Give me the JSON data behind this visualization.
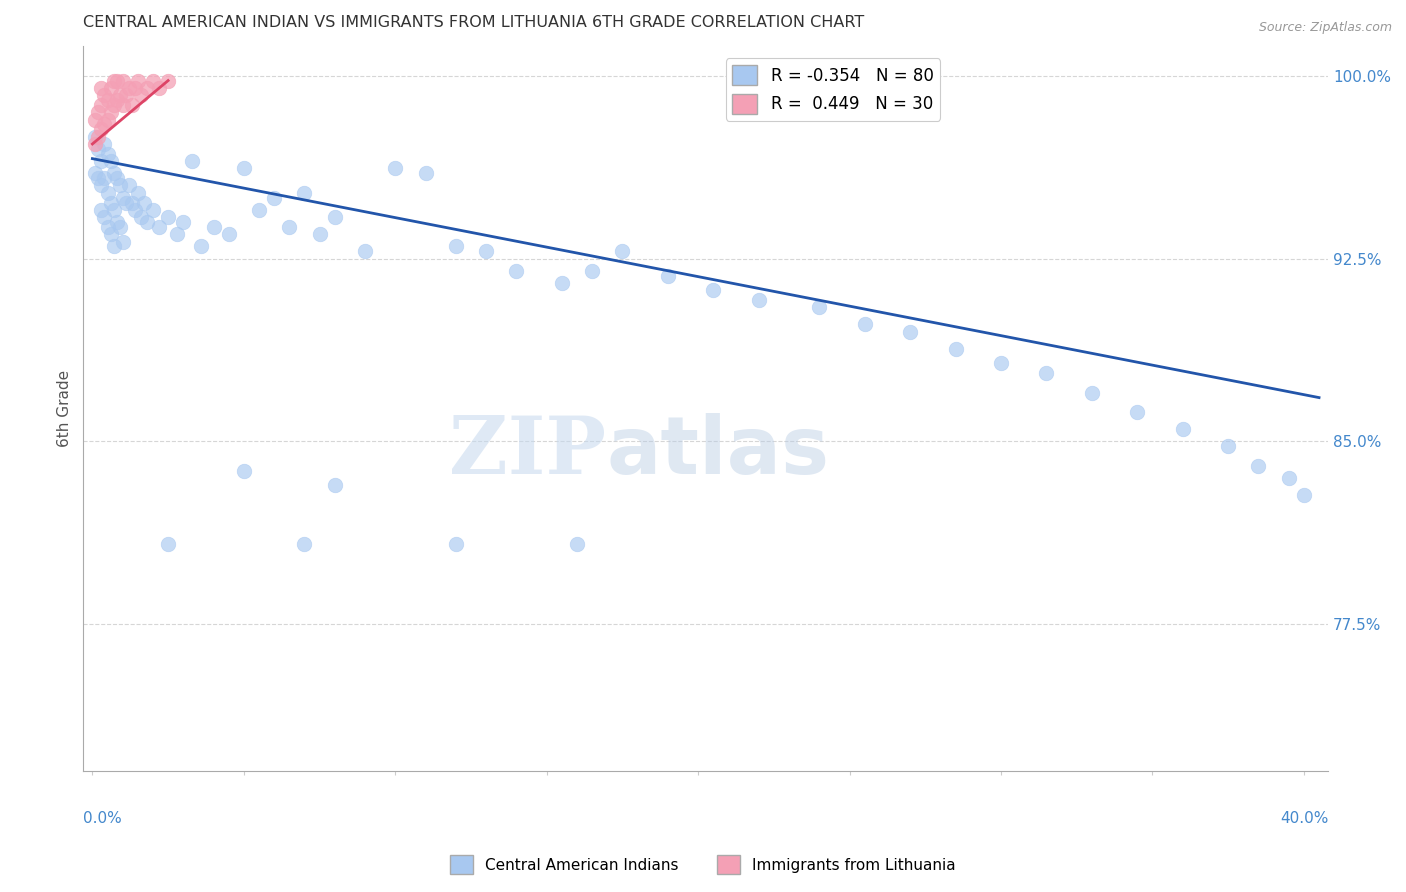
{
  "title": "CENTRAL AMERICAN INDIAN VS IMMIGRANTS FROM LITHUANIA 6TH GRADE CORRELATION CHART",
  "source": "Source: ZipAtlas.com",
  "ylabel": "6th Grade",
  "ylim": [
    0.715,
    1.012
  ],
  "xlim": [
    -0.003,
    0.408
  ],
  "blue_R": -0.354,
  "blue_N": 80,
  "pink_R": 0.449,
  "pink_N": 30,
  "legend_label_blue": "Central American Indians",
  "legend_label_pink": "Immigrants from Lithuania",
  "watermark_zip": "ZIP",
  "watermark_atlas": "atlas",
  "blue_color": "#A8C8F0",
  "pink_color": "#F4A0B5",
  "blue_line_color": "#2255AA",
  "pink_line_color": "#DD4466",
  "background_color": "#FFFFFF",
  "grid_color": "#CCCCCC",
  "title_color": "#333333",
  "axis_label_color": "#4488CC",
  "blue_x": [
    0.001,
    0.001,
    0.002,
    0.002,
    0.003,
    0.003,
    0.003,
    0.004,
    0.004,
    0.004,
    0.005,
    0.005,
    0.005,
    0.006,
    0.006,
    0.006,
    0.007,
    0.007,
    0.007,
    0.008,
    0.008,
    0.009,
    0.009,
    0.01,
    0.01,
    0.011,
    0.012,
    0.013,
    0.014,
    0.015,
    0.016,
    0.017,
    0.018,
    0.02,
    0.022,
    0.025,
    0.028,
    0.03,
    0.033,
    0.036,
    0.04,
    0.045,
    0.05,
    0.055,
    0.06,
    0.065,
    0.07,
    0.075,
    0.08,
    0.09,
    0.1,
    0.11,
    0.12,
    0.13,
    0.14,
    0.155,
    0.165,
    0.175,
    0.19,
    0.205,
    0.22,
    0.24,
    0.255,
    0.27,
    0.285,
    0.3,
    0.315,
    0.33,
    0.345,
    0.36,
    0.375,
    0.385,
    0.395,
    0.4,
    0.05,
    0.08,
    0.12,
    0.16,
    0.025,
    0.07
  ],
  "blue_y": [
    0.975,
    0.96,
    0.97,
    0.958,
    0.965,
    0.955,
    0.945,
    0.972,
    0.958,
    0.942,
    0.968,
    0.952,
    0.938,
    0.965,
    0.948,
    0.935,
    0.96,
    0.945,
    0.93,
    0.958,
    0.94,
    0.955,
    0.938,
    0.95,
    0.932,
    0.948,
    0.955,
    0.948,
    0.945,
    0.952,
    0.942,
    0.948,
    0.94,
    0.945,
    0.938,
    0.942,
    0.935,
    0.94,
    0.965,
    0.93,
    0.938,
    0.935,
    0.962,
    0.945,
    0.95,
    0.938,
    0.952,
    0.935,
    0.942,
    0.928,
    0.962,
    0.96,
    0.93,
    0.928,
    0.92,
    0.915,
    0.92,
    0.928,
    0.918,
    0.912,
    0.908,
    0.905,
    0.898,
    0.895,
    0.888,
    0.882,
    0.878,
    0.87,
    0.862,
    0.855,
    0.848,
    0.84,
    0.835,
    0.828,
    0.838,
    0.832,
    0.808,
    0.808,
    0.808,
    0.808
  ],
  "pink_x": [
    0.001,
    0.001,
    0.002,
    0.002,
    0.003,
    0.003,
    0.003,
    0.004,
    0.004,
    0.005,
    0.005,
    0.006,
    0.006,
    0.007,
    0.007,
    0.008,
    0.008,
    0.009,
    0.01,
    0.01,
    0.011,
    0.012,
    0.013,
    0.014,
    0.015,
    0.016,
    0.018,
    0.02,
    0.022,
    0.025
  ],
  "pink_y": [
    0.972,
    0.982,
    0.975,
    0.985,
    0.978,
    0.988,
    0.995,
    0.98,
    0.992,
    0.982,
    0.99,
    0.985,
    0.995,
    0.988,
    0.998,
    0.99,
    0.998,
    0.992,
    0.988,
    0.998,
    0.992,
    0.995,
    0.988,
    0.995,
    0.998,
    0.992,
    0.995,
    0.998,
    0.995,
    0.998
  ],
  "blue_line_x": [
    0.0,
    0.405
  ],
  "blue_line_y": [
    0.966,
    0.868
  ],
  "pink_line_x": [
    0.0,
    0.025
  ],
  "pink_line_y": [
    0.972,
    0.998
  ],
  "ytick_vals": [
    0.775,
    0.85,
    0.925,
    1.0
  ],
  "ytick_labels": [
    "77.5%",
    "85.0%",
    "92.5%",
    "100.0%"
  ]
}
